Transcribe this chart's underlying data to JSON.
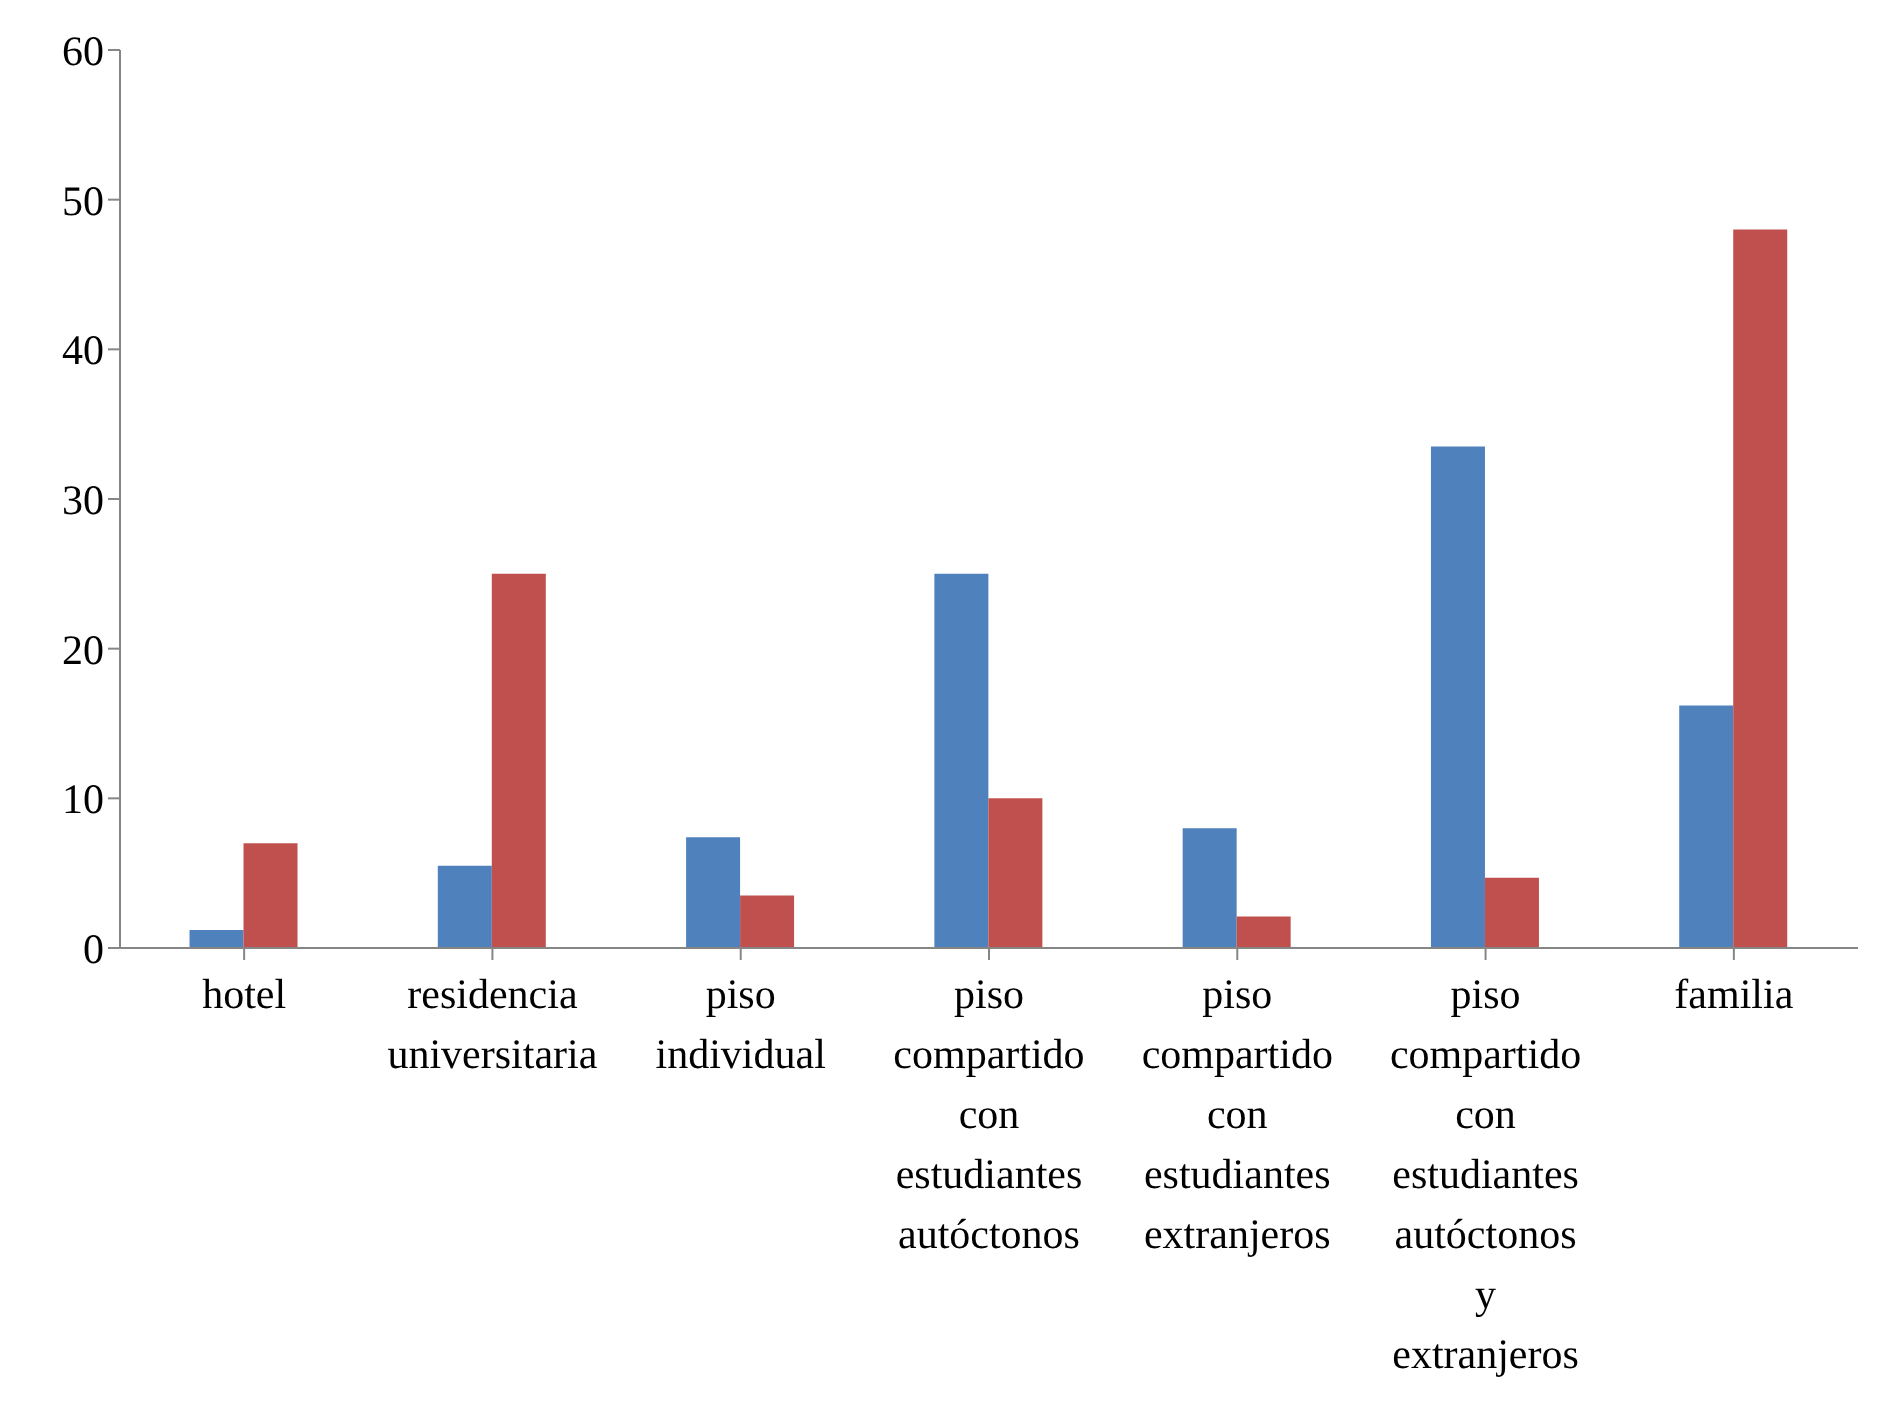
{
  "chart_data": {
    "type": "bar",
    "categories": [
      "hotel",
      "residencia universitaria",
      "piso individual",
      "piso compartido con estudiantes autóctonos",
      "piso compartido con estudiantes extranjeros",
      "piso compartido con estudiantes autóctonos y extranjeros",
      "familia"
    ],
    "series": [
      {
        "color": "#4f81bd",
        "values": [
          1.2,
          5.5,
          7.4,
          25,
          8,
          33.5,
          16.2
        ]
      },
      {
        "color": "#c0504d",
        "values": [
          7,
          25,
          3.5,
          10,
          2.1,
          4.7,
          48
        ]
      }
    ],
    "ylim": [
      0,
      60
    ],
    "yticks": [
      0,
      10,
      20,
      30,
      40,
      50,
      60
    ],
    "grid": false,
    "legend": false
  }
}
